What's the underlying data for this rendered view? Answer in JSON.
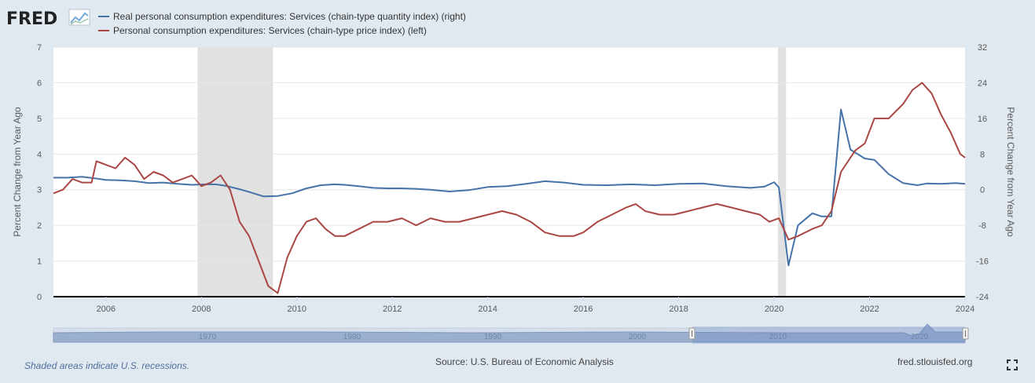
{
  "logo": {
    "text": "FRED"
  },
  "legend": [
    {
      "label": "Real personal consumption expenditures: Services (chain-type quantity index) (right)",
      "color": "#4572a7"
    },
    {
      "label": "Personal consumption expenditures: Services (chain-type price index) (left)",
      "color": "#aa4643"
    }
  ],
  "footer": {
    "note": "Shaded areas indicate U.S. recessions.",
    "source": "Source: U.S. Bureau of Economic Analysis",
    "url": "fred.stlouisfed.org"
  },
  "chart_data": {
    "type": "line",
    "ylabel": "Percent Change from Year Ago",
    "y2label": "Percent Change from Year Ago",
    "xlim": [
      2004.9,
      2024.0
    ],
    "ylim": [
      0,
      7
    ],
    "y2lim": [
      -24,
      32
    ],
    "xticks": [
      "2006",
      "2008",
      "2010",
      "2012",
      "2014",
      "2016",
      "2018",
      "2020",
      "2022",
      "2024"
    ],
    "yticks": [
      "0",
      "1",
      "2",
      "3",
      "4",
      "5",
      "6",
      "7"
    ],
    "y2ticks": [
      "-24",
      "-16",
      "-8",
      "0",
      "8",
      "16",
      "24",
      "32"
    ],
    "recessions": [
      [
        2007.92,
        2009.5
      ],
      [
        2020.08,
        2020.25
      ]
    ],
    "grid": true,
    "legend_position": "top-left",
    "navigator_labels": [
      "1970",
      "1980",
      "1990",
      "2000",
      "2010",
      "2020"
    ],
    "series": [
      {
        "name": "Real personal consumption expenditures: Services (chain-type quantity index) (right)",
        "axis": "right",
        "color": "#4572a7",
        "points": [
          [
            2004.9,
            2.7
          ],
          [
            2005.2,
            2.7
          ],
          [
            2005.5,
            2.9
          ],
          [
            2005.8,
            2.5
          ],
          [
            2006.0,
            2.2
          ],
          [
            2006.3,
            2.1
          ],
          [
            2006.6,
            1.9
          ],
          [
            2006.9,
            1.5
          ],
          [
            2007.2,
            1.6
          ],
          [
            2007.5,
            1.3
          ],
          [
            2007.8,
            1.1
          ],
          [
            2008.1,
            1.2
          ],
          [
            2008.3,
            1.2
          ],
          [
            2008.5,
            0.9
          ],
          [
            2008.8,
            0.1
          ],
          [
            2009.0,
            -0.5
          ],
          [
            2009.3,
            -1.5
          ],
          [
            2009.6,
            -1.4
          ],
          [
            2009.9,
            -0.8
          ],
          [
            2010.2,
            0.3
          ],
          [
            2010.5,
            1.0
          ],
          [
            2010.8,
            1.2
          ],
          [
            2011.0,
            1.1
          ],
          [
            2011.3,
            0.8
          ],
          [
            2011.6,
            0.4
          ],
          [
            2011.9,
            0.3
          ],
          [
            2012.2,
            0.3
          ],
          [
            2012.5,
            0.2
          ],
          [
            2012.8,
            0.0
          ],
          [
            2013.2,
            -0.4
          ],
          [
            2013.6,
            -0.1
          ],
          [
            2014.0,
            0.6
          ],
          [
            2014.4,
            0.8
          ],
          [
            2014.8,
            1.3
          ],
          [
            2015.2,
            1.9
          ],
          [
            2015.6,
            1.6
          ],
          [
            2016.0,
            1.1
          ],
          [
            2016.5,
            1.0
          ],
          [
            2017.0,
            1.2
          ],
          [
            2017.5,
            1.0
          ],
          [
            2018.0,
            1.3
          ],
          [
            2018.5,
            1.4
          ],
          [
            2019.0,
            0.8
          ],
          [
            2019.5,
            0.4
          ],
          [
            2019.8,
            0.7
          ],
          [
            2020.0,
            1.7
          ],
          [
            2020.1,
            0.5
          ],
          [
            2020.3,
            -17.0
          ],
          [
            2020.5,
            -8.0
          ],
          [
            2020.8,
            -5.3
          ],
          [
            2021.0,
            -6.0
          ],
          [
            2021.2,
            -6.0
          ],
          [
            2021.4,
            18.0
          ],
          [
            2021.6,
            9.0
          ],
          [
            2021.9,
            7.0
          ],
          [
            2022.1,
            6.7
          ],
          [
            2022.4,
            3.5
          ],
          [
            2022.7,
            1.5
          ],
          [
            2023.0,
            1.0
          ],
          [
            2023.2,
            1.4
          ],
          [
            2023.5,
            1.3
          ],
          [
            2023.8,
            1.5
          ],
          [
            2024.0,
            1.3
          ]
        ]
      },
      {
        "name": "Personal consumption expenditures: Services (chain-type price index) (left)",
        "axis": "left",
        "color": "#aa4643",
        "points": [
          [
            2004.9,
            2.9
          ],
          [
            2005.1,
            3.0
          ],
          [
            2005.3,
            3.3
          ],
          [
            2005.5,
            3.2
          ],
          [
            2005.7,
            3.2
          ],
          [
            2005.8,
            3.8
          ],
          [
            2006.0,
            3.7
          ],
          [
            2006.2,
            3.6
          ],
          [
            2006.4,
            3.9
          ],
          [
            2006.6,
            3.7
          ],
          [
            2006.8,
            3.3
          ],
          [
            2007.0,
            3.5
          ],
          [
            2007.2,
            3.4
          ],
          [
            2007.4,
            3.2
          ],
          [
            2007.6,
            3.3
          ],
          [
            2007.8,
            3.4
          ],
          [
            2008.0,
            3.1
          ],
          [
            2008.2,
            3.2
          ],
          [
            2008.4,
            3.4
          ],
          [
            2008.6,
            3.0
          ],
          [
            2008.8,
            2.1
          ],
          [
            2009.0,
            1.7
          ],
          [
            2009.2,
            1.0
          ],
          [
            2009.4,
            0.3
          ],
          [
            2009.6,
            0.1
          ],
          [
            2009.8,
            1.1
          ],
          [
            2010.0,
            1.7
          ],
          [
            2010.2,
            2.1
          ],
          [
            2010.4,
            2.2
          ],
          [
            2010.6,
            1.9
          ],
          [
            2010.8,
            1.7
          ],
          [
            2011.0,
            1.7
          ],
          [
            2011.3,
            1.9
          ],
          [
            2011.6,
            2.1
          ],
          [
            2011.9,
            2.1
          ],
          [
            2012.2,
            2.2
          ],
          [
            2012.5,
            2.0
          ],
          [
            2012.8,
            2.2
          ],
          [
            2013.1,
            2.1
          ],
          [
            2013.4,
            2.1
          ],
          [
            2013.7,
            2.2
          ],
          [
            2014.0,
            2.3
          ],
          [
            2014.3,
            2.4
          ],
          [
            2014.6,
            2.3
          ],
          [
            2014.9,
            2.1
          ],
          [
            2015.2,
            1.8
          ],
          [
            2015.5,
            1.7
          ],
          [
            2015.8,
            1.7
          ],
          [
            2016.0,
            1.8
          ],
          [
            2016.3,
            2.1
          ],
          [
            2016.6,
            2.3
          ],
          [
            2016.9,
            2.5
          ],
          [
            2017.1,
            2.6
          ],
          [
            2017.3,
            2.4
          ],
          [
            2017.6,
            2.3
          ],
          [
            2017.9,
            2.3
          ],
          [
            2018.2,
            2.4
          ],
          [
            2018.5,
            2.5
          ],
          [
            2018.8,
            2.6
          ],
          [
            2019.1,
            2.5
          ],
          [
            2019.4,
            2.4
          ],
          [
            2019.7,
            2.3
          ],
          [
            2019.9,
            2.1
          ],
          [
            2020.1,
            2.2
          ],
          [
            2020.3,
            1.6
          ],
          [
            2020.5,
            1.7
          ],
          [
            2020.8,
            1.9
          ],
          [
            2021.0,
            2.0
          ],
          [
            2021.2,
            2.4
          ],
          [
            2021.4,
            3.5
          ],
          [
            2021.7,
            4.1
          ],
          [
            2021.9,
            4.3
          ],
          [
            2022.1,
            5.0
          ],
          [
            2022.4,
            5.0
          ],
          [
            2022.7,
            5.4
          ],
          [
            2022.9,
            5.8
          ],
          [
            2023.1,
            6.0
          ],
          [
            2023.3,
            5.7
          ],
          [
            2023.5,
            5.1
          ],
          [
            2023.7,
            4.6
          ],
          [
            2023.9,
            4.0
          ],
          [
            2024.0,
            3.9
          ]
        ]
      }
    ]
  }
}
